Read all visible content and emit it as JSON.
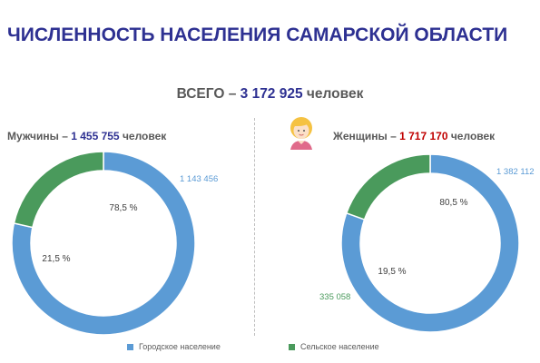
{
  "title": "ЧИСЛЕННОСТЬ НАСЕЛЕНИЯ САМАРСКОЙ ОБЛАСТИ",
  "total": {
    "prefix": "ВСЕГО – ",
    "value": "3 172 925",
    "suffix": " человек"
  },
  "men": {
    "prefix": "Мужчины  – ",
    "value": "1 455 755",
    "suffix": " человек"
  },
  "women": {
    "prefix": "Женщины – ",
    "value": "1 717 170",
    "suffix": " человек"
  },
  "colors": {
    "urban": "#5b9bd5",
    "rural": "#4a9a5c",
    "title": "#2e3192",
    "highlight_red": "#c00000"
  },
  "icons": [
    "woman-avatar-icon"
  ],
  "chart_data": [
    {
      "type": "pie",
      "name": "Мужчины",
      "categories": [
        "Городское население",
        "Сельское население"
      ],
      "values": [
        78.5,
        21.5
      ],
      "percent_labels": [
        "78,5 %",
        "21,5 %"
      ],
      "value_labels": [
        "1 143 456",
        ""
      ]
    },
    {
      "type": "pie",
      "name": "Женщины",
      "categories": [
        "Городское население",
        "Сельское население"
      ],
      "values": [
        80.5,
        19.5
      ],
      "percent_labels": [
        "80,5 %",
        "19,5 %"
      ],
      "value_labels": [
        "1 382 112",
        "335 058"
      ]
    }
  ],
  "legend": [
    {
      "label": "Городское население",
      "color": "#5b9bd5"
    },
    {
      "label": "Сельское население",
      "color": "#4a9a5c"
    }
  ]
}
